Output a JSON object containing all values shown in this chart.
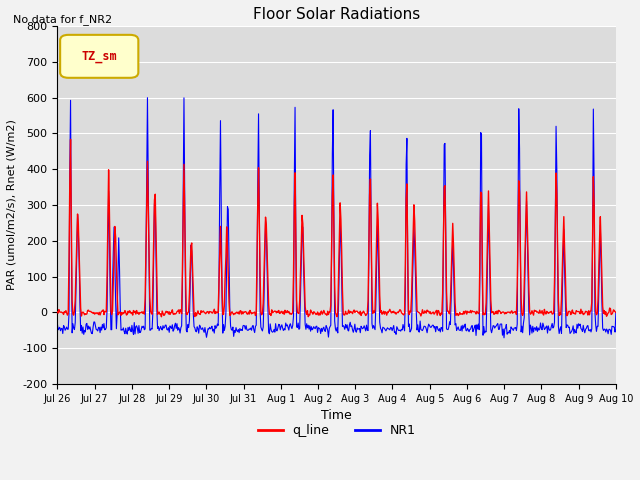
{
  "title": "Floor Solar Radiations",
  "xlabel": "Time",
  "ylabel": "PAR (umol/m2/s), Rnet (W/m2)",
  "annotation": "No data for f_NR2",
  "legend_label": "TZ_sm",
  "ylim": [
    -200,
    800
  ],
  "yticks": [
    -200,
    -100,
    0,
    100,
    200,
    300,
    400,
    500,
    600,
    700,
    800
  ],
  "xtick_labels": [
    "Jul 26",
    "Jul 27",
    "Jul 28",
    "Jul 29",
    "Jul 30",
    "Jul 31",
    "Aug 1",
    "Aug 2",
    "Aug 3",
    "Aug 4",
    "Aug 5",
    "Aug 6",
    "Aug 7",
    "Aug 8",
    "Aug 9",
    "Aug 10"
  ],
  "line1_color": "#FF0000",
  "line2_color": "#0000FF",
  "line1_label": "q_line",
  "line2_label": "NR1",
  "bg_color": "#DCDCDC",
  "grid_color": "#FFFFFF",
  "fig_color": "#F2F2F2",
  "legend_box_color": "#FFFFCC",
  "legend_box_edge": "#CCAA00",
  "n_days": 15
}
